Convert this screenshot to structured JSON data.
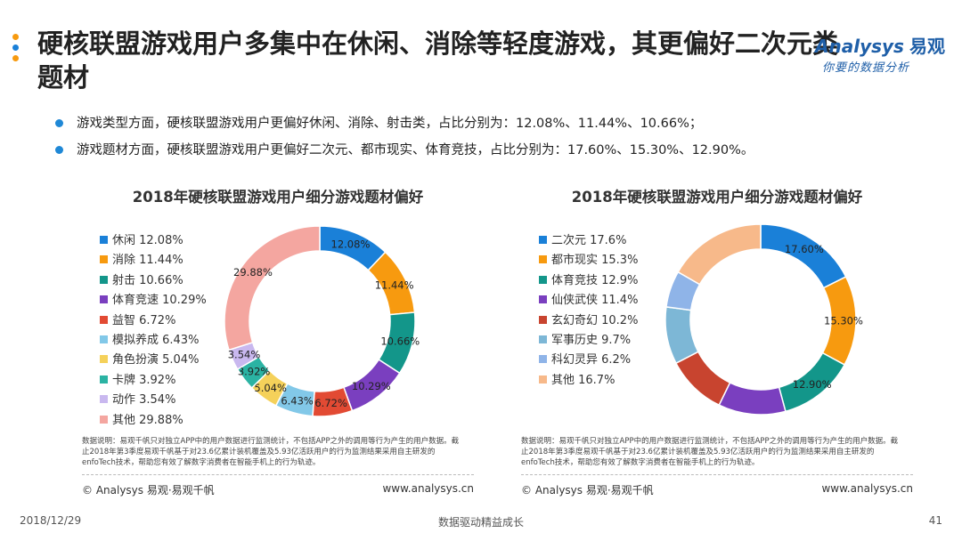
{
  "header": {
    "title": "硬核联盟游戏用户多集中在休闲、消除等轻度游戏，其更偏好二次元类题材",
    "logo_brand": "Analysys",
    "logo_cn": "易观",
    "logo_sub": "你要的数据分析"
  },
  "bullets": [
    "游戏类型方面，硬核联盟游戏用户更偏好休闲、消除、射击类，占比分别为：12.08%、11.44%、10.66%；",
    "游戏题材方面，硬核联盟游戏用户更偏好二次元、都市现实、体育竞技，占比分别为：17.60%、15.30%、12.90%。"
  ],
  "panels": [
    {
      "note": "数据说明：易观千帆只对独立APP中的用户数据进行监测统计，不包括APP之外的调用等行为产生的用户数据。截止2018年第3季度易观千帆基于对23.6亿累计装机覆盖及5.93亿活跃用户的行为监测结果采用自主研发的enfoTech技术，帮助您有效了解数字消费者在智能手机上的行为轨迹。",
      "footer_left": "© Analysys 易观·易观千帆",
      "footer_right": "www.analysys.cn"
    },
    {
      "note": "数据说明：易观千帆只对独立APP中的用户数据进行监测统计，不包括APP之外的调用等行为产生的用户数据。截止2018年第3季度易观千帆基于对23.6亿累计装机覆盖及5.93亿活跃用户的行为监测结果采用自主研发的enfoTech技术，帮助您有效了解数字消费者在智能手机上的行为轨迹。",
      "footer_left": "© Analysys 易观·易观千帆",
      "footer_right": "www.analysys.cn"
    }
  ],
  "footer": {
    "date": "2018/12/29",
    "center": "数据驱动精益成长",
    "page": "41"
  },
  "chart_data": [
    {
      "type": "pie",
      "donut": true,
      "title": "2018年硬核联盟游戏用户细分游戏题材偏好",
      "categories": [
        "休闲",
        "消除",
        "射击",
        "体育竞速",
        "益智",
        "模拟养成",
        "角色扮演",
        "卡牌",
        "动作",
        "其他"
      ],
      "values": [
        12.08,
        11.44,
        10.66,
        10.29,
        6.72,
        6.43,
        5.04,
        3.92,
        3.54,
        29.88
      ],
      "legend": [
        "休闲 12.08%",
        "消除 11.44%",
        "射击 10.66%",
        "体育竞速 10.29%",
        "益智 6.72%",
        "模拟养成 6.43%",
        "角色扮演 5.04%",
        "卡牌 3.92%",
        "动作 3.54%",
        "其他 29.88%"
      ],
      "labels": [
        "12.08%",
        "11.44%",
        "10.66%",
        "10.29%",
        "6.72%",
        "6.43%",
        "5.04%",
        "3.92%",
        "3.54%",
        "29.88%"
      ],
      "colors": [
        "#1a80d8",
        "#f79a0f",
        "#13968a",
        "#7a3fbf",
        "#e24a33",
        "#82c8e8",
        "#f5d15a",
        "#2bb3a3",
        "#c9b8ef",
        "#f4a6a0"
      ],
      "legend_position": "left"
    },
    {
      "type": "pie",
      "donut": true,
      "title": "2018年硬核联盟游戏用户细分游戏题材偏好",
      "categories": [
        "二次元",
        "都市现实",
        "体育竞技",
        "仙侠武侠",
        "玄幻奇幻",
        "军事历史",
        "科幻灵异",
        "其他"
      ],
      "values": [
        17.6,
        15.3,
        12.9,
        11.4,
        10.2,
        9.7,
        6.2,
        16.7
      ],
      "legend": [
        "二次元 17.6%",
        "都市现实 15.3%",
        "体育竞技 12.9%",
        "仙侠武侠 11.4%",
        "玄幻奇幻 10.2%",
        "军事历史 9.7%",
        "科幻灵异 6.2%",
        "其他 16.7%"
      ],
      "labels": [
        "17.60%",
        "15.30%",
        "12.90%",
        "",
        "",
        "",
        "",
        ""
      ],
      "colors": [
        "#1a80d8",
        "#f79a0f",
        "#13968a",
        "#7a3fbf",
        "#c8442f",
        "#7db7d6",
        "#8fb4e8",
        "#f7b98a"
      ],
      "legend_position": "left"
    }
  ]
}
